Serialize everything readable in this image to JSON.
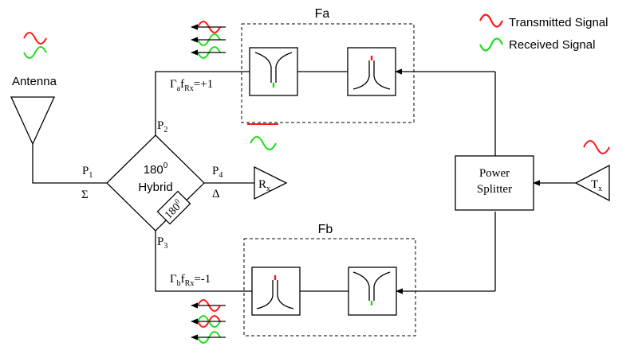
{
  "colors": {
    "transmitted": "#ff1a1a",
    "received": "#22dd22",
    "line": "#000000"
  },
  "legend": {
    "transmitted": "Transmitted Signal",
    "received": "Received Signal"
  },
  "antenna": {
    "label": "Antenna"
  },
  "hybrid": {
    "title_value": "180",
    "title_exp": "0",
    "title_word": "Hybrid",
    "shifter_value": "180",
    "shifter_exp": "0"
  },
  "ports": {
    "p1": "P",
    "p1_sub": "1",
    "p2": "P",
    "p2_sub": "2",
    "p3": "P",
    "p3_sub": "3",
    "p4": "P",
    "p4_sub": "4",
    "sigma": "Σ",
    "delta": "Δ"
  },
  "receiver": {
    "main": "R",
    "sub": "x"
  },
  "transmitter": {
    "main": "T",
    "sub": "x"
  },
  "splitter": {
    "line1": "Power",
    "line2": "Splitter"
  },
  "filter_a": {
    "title": "Fa",
    "gamma": "Γ",
    "gamma_sub": "a",
    "f": "f",
    "f_sub": "Rx",
    "value": "=+1"
  },
  "filter_b": {
    "title": "Fb",
    "gamma": "Γ",
    "gamma_sub": "b",
    "f": "f",
    "f_sub": "Rx",
    "value": "=-1"
  }
}
